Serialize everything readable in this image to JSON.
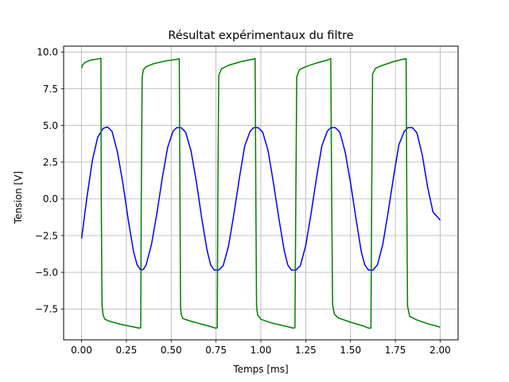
{
  "chart_data": {
    "type": "line",
    "title": "Résultat expérimentaux du filtre",
    "xlabel": "Temps [ms]",
    "ylabel": "Tension [V]",
    "xlim": [
      -0.1,
      2.1
    ],
    "ylim": [
      -9.6,
      10.4
    ],
    "xticks": [
      0.0,
      0.25,
      0.5,
      0.75,
      1.0,
      1.25,
      1.5,
      1.75,
      2.0
    ],
    "xtick_labels": [
      "0.00",
      "0.25",
      "0.50",
      "0.75",
      "1.00",
      "1.25",
      "1.50",
      "1.75",
      "2.00"
    ],
    "yticks": [
      -7.5,
      -5.0,
      -2.5,
      0.0,
      2.5,
      5.0,
      7.5,
      10.0
    ],
    "ytick_labels": [
      "−7.5",
      "−5.0",
      "−2.5",
      "0.0",
      "2.5",
      "5.0",
      "7.5",
      "10.0"
    ],
    "grid": true,
    "series": [
      {
        "color": "#0000ff",
        "x": [
          0.0,
          0.03,
          0.06,
          0.09,
          0.12,
          0.145,
          0.17,
          0.2,
          0.23,
          0.26,
          0.29,
          0.31,
          0.33,
          0.345,
          0.36,
          0.39,
          0.42,
          0.45,
          0.48,
          0.51,
          0.53,
          0.555,
          0.58,
          0.61,
          0.64,
          0.67,
          0.7,
          0.72,
          0.74,
          0.765,
          0.79,
          0.82,
          0.85,
          0.88,
          0.91,
          0.94,
          0.96,
          0.985,
          1.01,
          1.04,
          1.07,
          1.1,
          1.13,
          1.15,
          1.17,
          1.195,
          1.22,
          1.25,
          1.28,
          1.31,
          1.34,
          1.37,
          1.39,
          1.415,
          1.44,
          1.47,
          1.5,
          1.53,
          1.56,
          1.58,
          1.6,
          1.625,
          1.65,
          1.68,
          1.71,
          1.74,
          1.77,
          1.8,
          1.82,
          1.845,
          1.87,
          1.9,
          1.93,
          1.96,
          1.99,
          2.0
        ],
        "y": [
          -2.7,
          0.1,
          2.6,
          4.2,
          4.8,
          4.9,
          4.6,
          3.2,
          1.1,
          -1.4,
          -3.6,
          -4.5,
          -4.85,
          -4.8,
          -4.5,
          -3.1,
          -1.0,
          1.4,
          3.5,
          4.6,
          4.85,
          4.85,
          4.55,
          3.3,
          1.2,
          -1.3,
          -3.5,
          -4.5,
          -4.85,
          -4.85,
          -4.55,
          -3.2,
          -1.0,
          1.4,
          3.6,
          4.6,
          4.85,
          4.85,
          4.55,
          3.3,
          1.1,
          -1.3,
          -3.5,
          -4.5,
          -4.85,
          -4.85,
          -4.55,
          -3.2,
          -1.0,
          1.4,
          3.6,
          4.6,
          4.85,
          4.85,
          4.55,
          3.2,
          1.1,
          -1.3,
          -3.6,
          -4.5,
          -4.85,
          -4.85,
          -4.5,
          -3.1,
          -0.9,
          1.5,
          3.7,
          4.6,
          4.85,
          4.85,
          4.5,
          3.0,
          0.8,
          -0.9,
          -1.3,
          -1.45
        ]
      },
      {
        "color": "#008000",
        "x": [
          0.0,
          0.005,
          0.02,
          0.05,
          0.1,
          0.108,
          0.11,
          0.114,
          0.12,
          0.13,
          0.16,
          0.22,
          0.28,
          0.32,
          0.33,
          0.333,
          0.338,
          0.345,
          0.36,
          0.4,
          0.47,
          0.53,
          0.545,
          0.549,
          0.552,
          0.556,
          0.565,
          0.6,
          0.66,
          0.72,
          0.745,
          0.757,
          0.76,
          0.765,
          0.78,
          0.82,
          0.89,
          0.95,
          0.968,
          0.972,
          0.976,
          0.982,
          1.0,
          1.06,
          1.13,
          1.18,
          1.19,
          1.195,
          1.2,
          1.215,
          1.25,
          1.31,
          1.37,
          1.39,
          1.395,
          1.4,
          1.41,
          1.43,
          1.5,
          1.57,
          1.6,
          1.614,
          1.618,
          1.623,
          1.64,
          1.68,
          1.74,
          1.79,
          1.81,
          1.814,
          1.818,
          1.83,
          1.87,
          1.93,
          1.99,
          2.0
        ],
        "y": [
          8.9,
          9.1,
          9.3,
          9.45,
          9.55,
          9.58,
          0.0,
          -7.2,
          -7.9,
          -8.2,
          -8.35,
          -8.55,
          -8.7,
          -8.8,
          -8.78,
          0.0,
          8.3,
          8.8,
          9.0,
          9.2,
          9.4,
          9.5,
          9.55,
          0.0,
          -7.3,
          -7.9,
          -8.15,
          -8.3,
          -8.5,
          -8.7,
          -8.8,
          -8.78,
          0.0,
          8.4,
          8.85,
          9.1,
          9.35,
          9.5,
          9.55,
          0.0,
          -7.3,
          -7.9,
          -8.2,
          -8.45,
          -8.65,
          -8.8,
          -8.78,
          0.0,
          8.3,
          8.8,
          9.0,
          9.25,
          9.45,
          9.55,
          0.0,
          -7.2,
          -7.85,
          -8.1,
          -8.4,
          -8.65,
          -8.8,
          -8.8,
          0.0,
          8.5,
          8.9,
          9.1,
          9.35,
          9.5,
          9.55,
          0.0,
          -7.3,
          -8.0,
          -8.25,
          -8.5,
          -8.7,
          -8.75
        ]
      }
    ]
  }
}
